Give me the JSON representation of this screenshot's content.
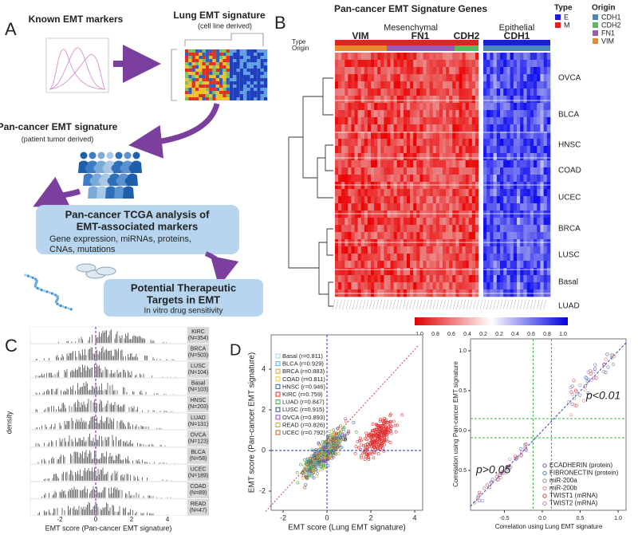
{
  "panel_a": {
    "label": "A",
    "known_markers": "Known EMT markers",
    "lung_title": "Lung EMT signature",
    "lung_subtitle": "(cell line derived)",
    "pan_title": "Pan-cancer EMT signature",
    "pan_subtitle": "(patient tumor derived)",
    "box1": {
      "title": [
        "Pan-cancer TCGA analysis of",
        "EMT-associated markers"
      ],
      "body": [
        "Gene expression, miRNAs, proteins,",
        "CNAs, mutations"
      ]
    },
    "box2": {
      "title": [
        "Potential Therapeutic",
        "Targets in EMT"
      ],
      "body": [
        "In vitro drug sensitivity"
      ]
    }
  },
  "panel_b": {
    "label": "B",
    "title": "Pan-cancer EMT Signature Genes",
    "groups": [
      "Mesenchymal",
      "Epithelial"
    ],
    "genes": [
      "VIM",
      "FN1",
      "CDH2",
      "CDH1"
    ],
    "track_labels": [
      "Type",
      "Origin"
    ],
    "rows": [
      "OVCA",
      "BLCA",
      "HNSC",
      "COAD",
      "UCEC",
      "BRCA",
      "LUSC",
      "Basal",
      "LUAD"
    ],
    "legend_type": {
      "title": "Type",
      "items": [
        {
          "name": "E",
          "color": "#1c1ce0"
        },
        {
          "name": "M",
          "color": "#e02424"
        }
      ]
    },
    "legend_origin": {
      "title": "Origin",
      "items": [
        {
          "name": "CDH1",
          "color": "#4a86b8"
        },
        {
          "name": "CDH2",
          "color": "#5cb85c"
        },
        {
          "name": "FN1",
          "color": "#9b59b6"
        },
        {
          "name": "VIM",
          "color": "#e8892c"
        }
      ]
    },
    "colorbar_labels": [
      "1.0",
      "0.8",
      "0.6",
      "0.4",
      "0.2",
      "0.2",
      "0.4",
      "0.6",
      "0.8",
      "1.0"
    ]
  },
  "panel_c": {
    "label": "C",
    "y_label": "density",
    "x_label": "EMT score (Pan-cancer EMT signature)",
    "xticks": [
      "-2",
      "0",
      "2",
      "4"
    ],
    "strips": [
      {
        "name": "KIRC",
        "n": "(N=354)"
      },
      {
        "name": "BRCA",
        "n": "(N=503)"
      },
      {
        "name": "LUSC",
        "n": "(N=104)"
      },
      {
        "name": "Basal",
        "n": "(N=103)"
      },
      {
        "name": "HNSC",
        "n": "(N=203)"
      },
      {
        "name": "LUAD",
        "n": "(N=131)"
      },
      {
        "name": "OVCA",
        "n": "(N=123)"
      },
      {
        "name": "BLCA",
        "n": "(N=58)"
      },
      {
        "name": "UCEC",
        "n": "(N=189)"
      },
      {
        "name": "COAD",
        "n": "(N=89)"
      },
      {
        "name": "READ",
        "n": "(N=47)"
      }
    ]
  },
  "panel_d": {
    "label": "D",
    "left": {
      "x_label": "EMT score (Lung EMT signature)",
      "y_label": "EMT score (Pan-cancer EMT signature)",
      "xticks": [
        "-2",
        "0",
        "2",
        "4"
      ],
      "yticks": [
        "4",
        "2",
        "0",
        "-2"
      ],
      "legend": [
        {
          "name": "Basal (r=0.811)",
          "color": "#9fd8ee"
        },
        {
          "name": "BLCA (r=0.929)",
          "color": "#4fb3e0"
        },
        {
          "name": "BRCA (r=0.883)",
          "color": "#f5a020"
        },
        {
          "name": "COAD (r=0.811)",
          "color": "#e8c840"
        },
        {
          "name": "HNSC (r=0.946)",
          "color": "#3a5fb0"
        },
        {
          "name": "KIRC (r=0.759)",
          "color": "#e03030"
        },
        {
          "name": "LUAD (r=0.847)",
          "color": "#40a845"
        },
        {
          "name": "LUSC (r=0.915)",
          "color": "#30506a"
        },
        {
          "name": "OVCA (r=0.893)",
          "color": "#9a50c0"
        },
        {
          "name": "READ (r=0.826)",
          "color": "#b0b030"
        },
        {
          "name": "UCEC (r=0.792)",
          "color": "#c05a28"
        }
      ]
    },
    "right": {
      "x_label": "Correlation using Lung EMT signature",
      "y_label": "Correlation using Pan-cancer EMT signature",
      "xticks": [
        "-0.5",
        "0.0",
        "0.5",
        "1.0"
      ],
      "yticks": [
        "1.0",
        "0.5",
        "0.0",
        "-0.5"
      ],
      "annotations": [
        "p<0.01",
        "p>0.05"
      ],
      "legend": [
        {
          "name": "ECADHERIN (protein)",
          "color": "#7a5ca8"
        },
        {
          "name": "FIBRONECTIN (protein)",
          "color": "#5a80c8"
        },
        {
          "name": "miR-200a",
          "color": "#909090"
        },
        {
          "name": "miR-200b",
          "color": "#e08888"
        },
        {
          "name": "TWIST1 (mRNA)",
          "color": "#d04040"
        },
        {
          "name": "TWIST2 (mRNA)",
          "color": "#c080c8"
        }
      ]
    }
  }
}
